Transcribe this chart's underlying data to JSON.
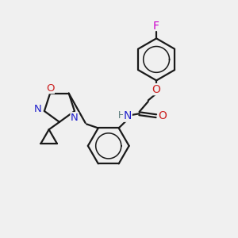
{
  "bg_color": "#f0f0f0",
  "bond_color": "#1a1a1a",
  "N_color": "#2222cc",
  "O_color": "#cc2222",
  "F_color": "#cc00cc",
  "H_color": "#557777",
  "line_width": 1.6,
  "figsize": [
    3.0,
    3.0
  ],
  "dpi": 100,
  "xlim": [
    0,
    10
  ],
  "ylim": [
    0,
    10
  ]
}
